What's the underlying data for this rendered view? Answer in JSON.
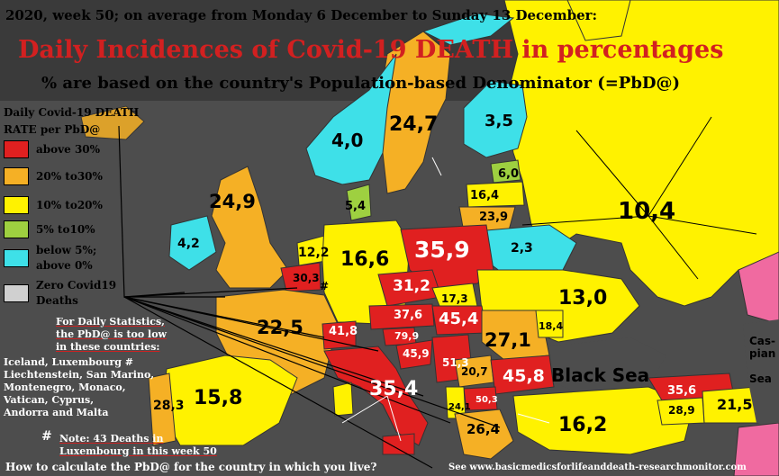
{
  "header": {
    "line1": "2020, week 50; on average from Monday 6 December to Sunday 13 December:",
    "title": "Daily Incidences of Covid-19 DEATH in percentages",
    "subtitle": "% are based on the country's Population-based Denominator (=PbD@)"
  },
  "legend": {
    "title_line1": "Daily Covid-19 DEATH",
    "title_line2": "RATE per PbD@",
    "items": [
      {
        "label": "above 30%",
        "color": "#e02020"
      },
      {
        "label": "20% to30%",
        "color": "#f5b025"
      },
      {
        "label": "10% to20%",
        "color": "#fff200"
      },
      {
        "label": "5% to10%",
        "color": "#9ed040"
      },
      {
        "label": "below 5%;",
        "label2": "above 0%",
        "color": "#3ee0e8"
      },
      {
        "label": "Zero Covid19",
        "label2": "Deaths",
        "color": "#d0d0d0"
      }
    ]
  },
  "note": {
    "l1": "For Daily Statistics,",
    "l2": "the PbD@ is too low",
    "l3": "in these countries:",
    "l4": "Iceland, Luxembourg #",
    "l5": "Liechtenstein, San Marino,",
    "l6": "Montenegro, Monaco,",
    "l7": "Vatican, Cyprus,",
    "l8": "Andorra and Malta",
    "hash": "#",
    "l9": "Note: 43 Deaths in",
    "l10": "Luxembourg in this week 50"
  },
  "values": {
    "norway": "4,0",
    "sweden": "24,7",
    "finland": "3,5",
    "estonia": "6,0",
    "latvia": "16,4",
    "lithuania": "23,9",
    "russia": "10,4",
    "denmark": "5,4",
    "uk": "24,9",
    "ireland": "4,2",
    "netherlands": "12,2",
    "belgium": "30,3",
    "lux_mark": "#",
    "germany": "16,6",
    "poland": "35,9",
    "belarus": "2,3",
    "czechia": "31,2",
    "slovakia": "17,3",
    "ukraine": "13,0",
    "france": "22,5",
    "switzerland": "41,8",
    "austria": "37,6",
    "hungary": "45,4",
    "moldova": "18,4",
    "slovenia": "79,9",
    "croatia": "45,9",
    "bosnia": "51,3",
    "romania": "27,1",
    "serbia": "20,7",
    "bulgaria": "45,8",
    "italy": "35,4",
    "macedonia": "50,3",
    "albania": "24,1",
    "greece": "26,4",
    "spain": "15,8",
    "portugal": "28,3",
    "turkey": "16,2",
    "georgia": "35,6",
    "armenia": "28,9",
    "azerbaijan": "21,5"
  },
  "seas": {
    "black_sea": "Black Sea",
    "caspian_1": "Cas-",
    "caspian_2": "pian",
    "caspian_3": "Sea"
  },
  "footer": {
    "left": "How to calculate the PbD@ for the country in which you live?",
    "right": "See www.basicmedicsforlifeanddeath-researchmonitor.com"
  }
}
